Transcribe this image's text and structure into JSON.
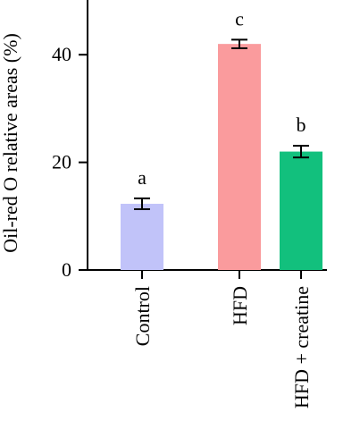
{
  "chart_data": {
    "type": "bar",
    "categories": [
      "Control",
      "HFD",
      "HFD + creatine"
    ],
    "values": [
      12.3,
      42.0,
      22.0
    ],
    "errors": [
      1.0,
      0.8,
      1.1
    ],
    "significance_letters": [
      "a",
      "c",
      "b"
    ],
    "colors": [
      "#c1c3f9",
      "#fa9b9d",
      "#12c07d"
    ],
    "ylabel": "Oil-red O relative areas (%)",
    "xlabel": "",
    "yticks": [
      0,
      20,
      40
    ],
    "ylim": [
      0,
      50
    ],
    "grid": false,
    "legend": "none"
  }
}
